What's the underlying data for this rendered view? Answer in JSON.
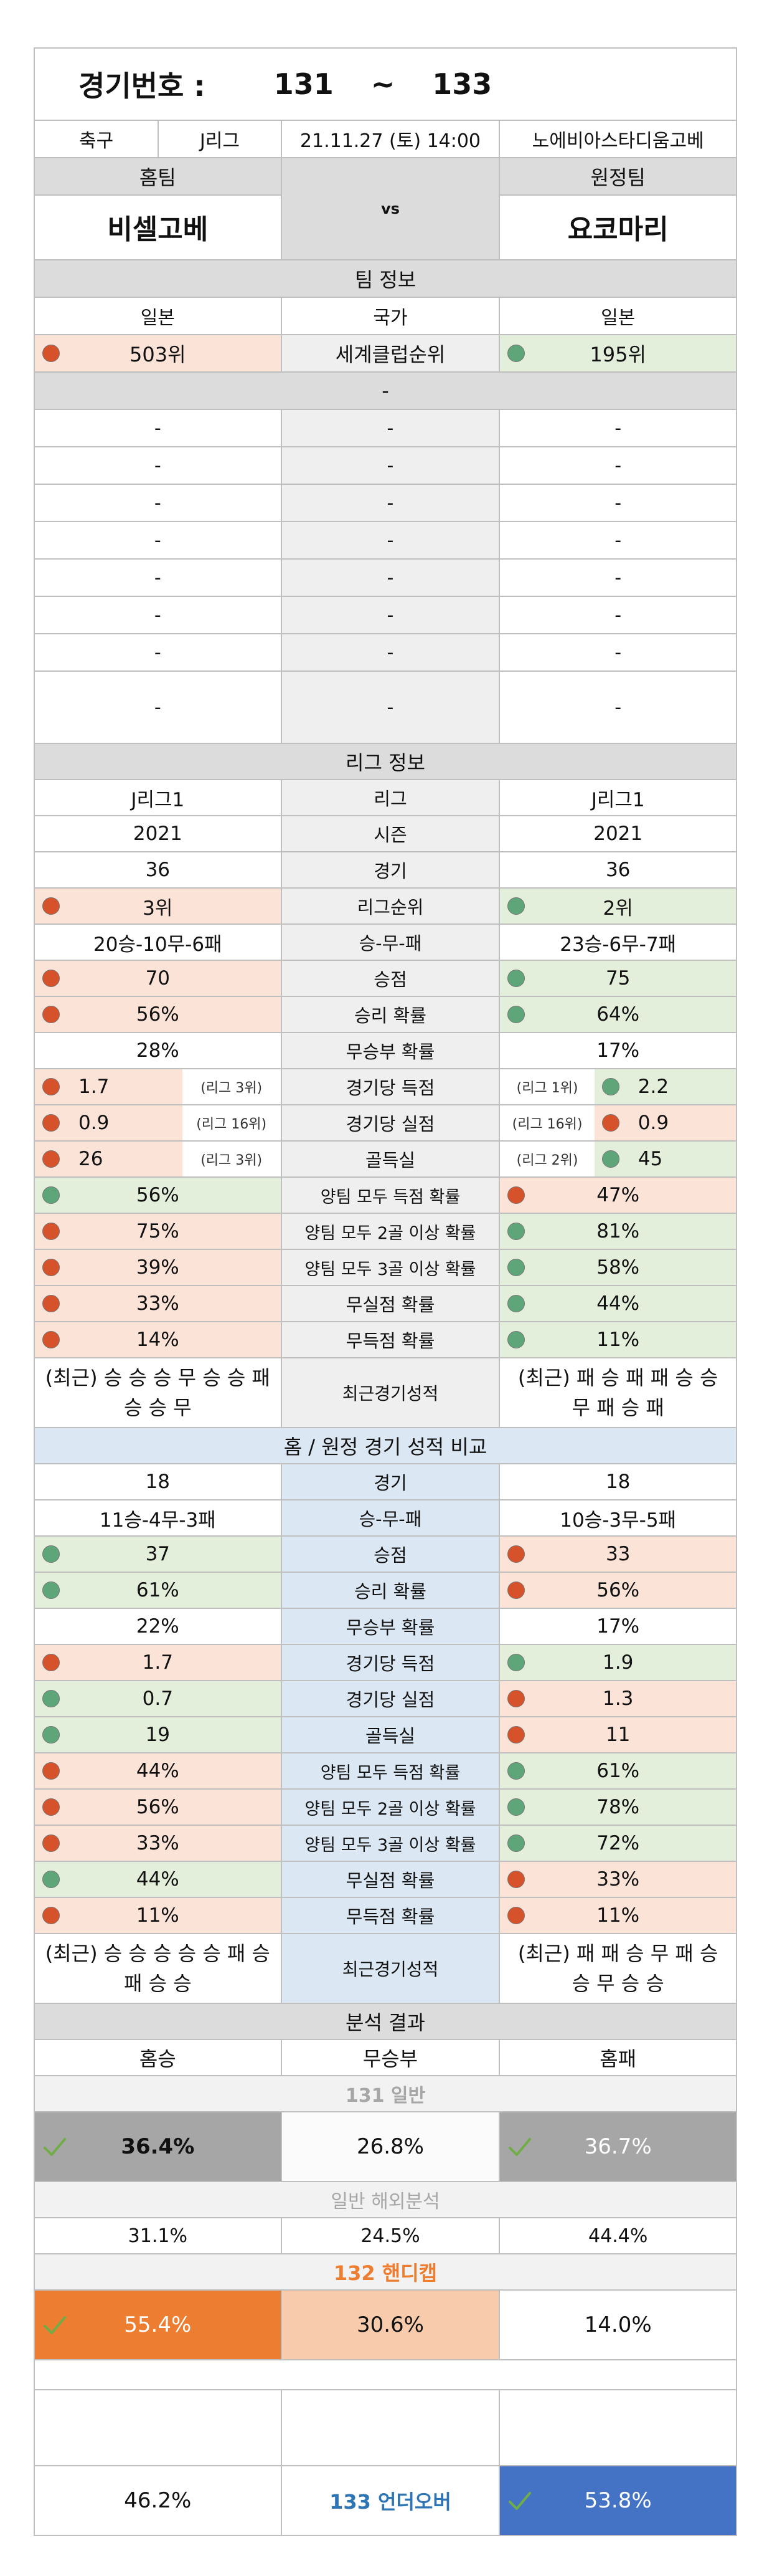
{
  "header": {
    "label": "경기번호 :",
    "num_from": "131",
    "tilde": "~",
    "num_to": "133",
    "sport": "축구",
    "league": "J리그",
    "datetime": "21.11.27 (토) 14:00",
    "venue": "노에비아스타디움고베"
  },
  "teams": {
    "home_label": "홈팀",
    "away_label": "원정팀",
    "home_name": "비셀고베",
    "away_name": "요코마리",
    "vs": "vs"
  },
  "team_info": {
    "title": "팀 정보",
    "rows": [
      {
        "home": "일본",
        "label": "국가",
        "away": "일본"
      },
      {
        "home": "503위",
        "label": "세계클럽순위",
        "away": "195위",
        "home_dot": "red",
        "away_dot": "green"
      }
    ],
    "dash_band": "-",
    "dash": "-"
  },
  "league_info": {
    "title": "리그 정보",
    "rows": [
      {
        "home": "J리그1",
        "label": "리그",
        "away": "J리그1"
      },
      {
        "home": "2021",
        "label": "시즌",
        "away": "2021"
      },
      {
        "home": "36",
        "label": "경기",
        "away": "36"
      },
      {
        "home": "3위",
        "label": "리그순위",
        "away": "2위",
        "hd": "red",
        "ad": "green"
      },
      {
        "home": "20승-10무-6패",
        "label": "승-무-패",
        "away": "23승-6무-7패"
      },
      {
        "home": "70",
        "label": "승점",
        "away": "75",
        "hd": "red",
        "ad": "green"
      },
      {
        "home": "56%",
        "label": "승리 확률",
        "away": "64%",
        "hd": "red",
        "ad": "green"
      },
      {
        "home": "28%",
        "label": "무승부 확률",
        "away": "17%"
      },
      {
        "home": "1.7",
        "hn": "(리그 3위)",
        "label": "경기당 득점",
        "away": "2.2",
        "an": "(리그 1위)",
        "hd": "red",
        "ad": "green"
      },
      {
        "home": "0.9",
        "hn": "(리그 16위)",
        "label": "경기당 실점",
        "away": "0.9",
        "an": "(리그 16위)",
        "hd": "red",
        "ad": "red"
      },
      {
        "home": "26",
        "hn": "(리그 3위)",
        "label": "골득실",
        "away": "45",
        "an": "(리그 2위)",
        "hd": "red",
        "ad": "green"
      },
      {
        "home": "56%",
        "label": "양팀 모두 득점 확률",
        "away": "47%",
        "hd": "green",
        "ad": "red"
      },
      {
        "home": "75%",
        "label": "양팀 모두 2골 이상 확률",
        "away": "81%",
        "hd": "red",
        "ad": "green"
      },
      {
        "home": "39%",
        "label": "양팀 모두 3골 이상 확률",
        "away": "58%",
        "hd": "red",
        "ad": "green"
      },
      {
        "home": "33%",
        "label": "무실점 확률",
        "away": "44%",
        "hd": "red",
        "ad": "green"
      },
      {
        "home": "14%",
        "label": "무득점 확률",
        "away": "11%",
        "hd": "red",
        "ad": "green"
      }
    ],
    "recent_home": "(최근) 승 승 승 무 승 승 패 승 승 무",
    "recent_label": "최근경기성적",
    "recent_away": "(최근) 패 승 패 패 승 승 무 패 승 패"
  },
  "compare": {
    "title": "홈 / 원정 경기 성적 비교",
    "rows": [
      {
        "home": "18",
        "label": "경기",
        "away": "18"
      },
      {
        "home": "11승-4무-3패",
        "label": "승-무-패",
        "away": "10승-3무-5패"
      },
      {
        "home": "37",
        "label": "승점",
        "away": "33",
        "hd": "green",
        "ad": "red"
      },
      {
        "home": "61%",
        "label": "승리 확률",
        "away": "56%",
        "hd": "green",
        "ad": "red"
      },
      {
        "home": "22%",
        "label": "무승부 확률",
        "away": "17%"
      },
      {
        "home": "1.7",
        "label": "경기당 득점",
        "away": "1.9",
        "hd": "red",
        "ad": "green"
      },
      {
        "home": "0.7",
        "label": "경기당 실점",
        "away": "1.3",
        "hd": "green",
        "ad": "red"
      },
      {
        "home": "19",
        "label": "골득실",
        "away": "11",
        "hd": "green",
        "ad": "red"
      },
      {
        "home": "44%",
        "label": "양팀 모두 득점 확률",
        "away": "61%",
        "hd": "red",
        "ad": "green"
      },
      {
        "home": "56%",
        "label": "양팀 모두 2골 이상 확률",
        "away": "78%",
        "hd": "red",
        "ad": "green"
      },
      {
        "home": "33%",
        "label": "양팀 모두 3골 이상 확률",
        "away": "72%",
        "hd": "red",
        "ad": "green"
      },
      {
        "home": "44%",
        "label": "무실점 확률",
        "away": "33%",
        "hd": "green",
        "ad": "red"
      },
      {
        "home": "11%",
        "label": "무득점 확률",
        "away": "11%",
        "hd": "red",
        "ad": "red"
      }
    ],
    "recent_home": "(최근) 승 승 승 승 승 패 승 패 승 승",
    "recent_label": "최근경기성적",
    "recent_away": "(최근) 패 패 승 무 패 승 승 무 승 승"
  },
  "analysis": {
    "title": "분석 결과",
    "col_home": "홈승",
    "col_draw": "무승부",
    "col_away": "홈패",
    "general_title": "131 일반",
    "general": {
      "home": "36.4%",
      "draw": "26.8%",
      "away": "36.7%"
    },
    "overseas_title": "일반 해외분석",
    "overseas": {
      "home": "31.1%",
      "draw": "24.5%",
      "away": "44.4%"
    },
    "handicap_title": "132 핸디캡",
    "handicap": {
      "home": "55.4%",
      "draw": "30.6%",
      "away": "14.0%"
    },
    "uo": {
      "under": "46.2%",
      "label": "133 언더오버",
      "over": "53.8%"
    }
  },
  "colors": {
    "red_dot": "#d6522a",
    "green_dot": "#5fa57a",
    "orange": "#ed7d31",
    "light_orange": "#f8cbad",
    "blue": "#4472c4",
    "gray": "#a6a6a6",
    "check": "#70ad47"
  }
}
